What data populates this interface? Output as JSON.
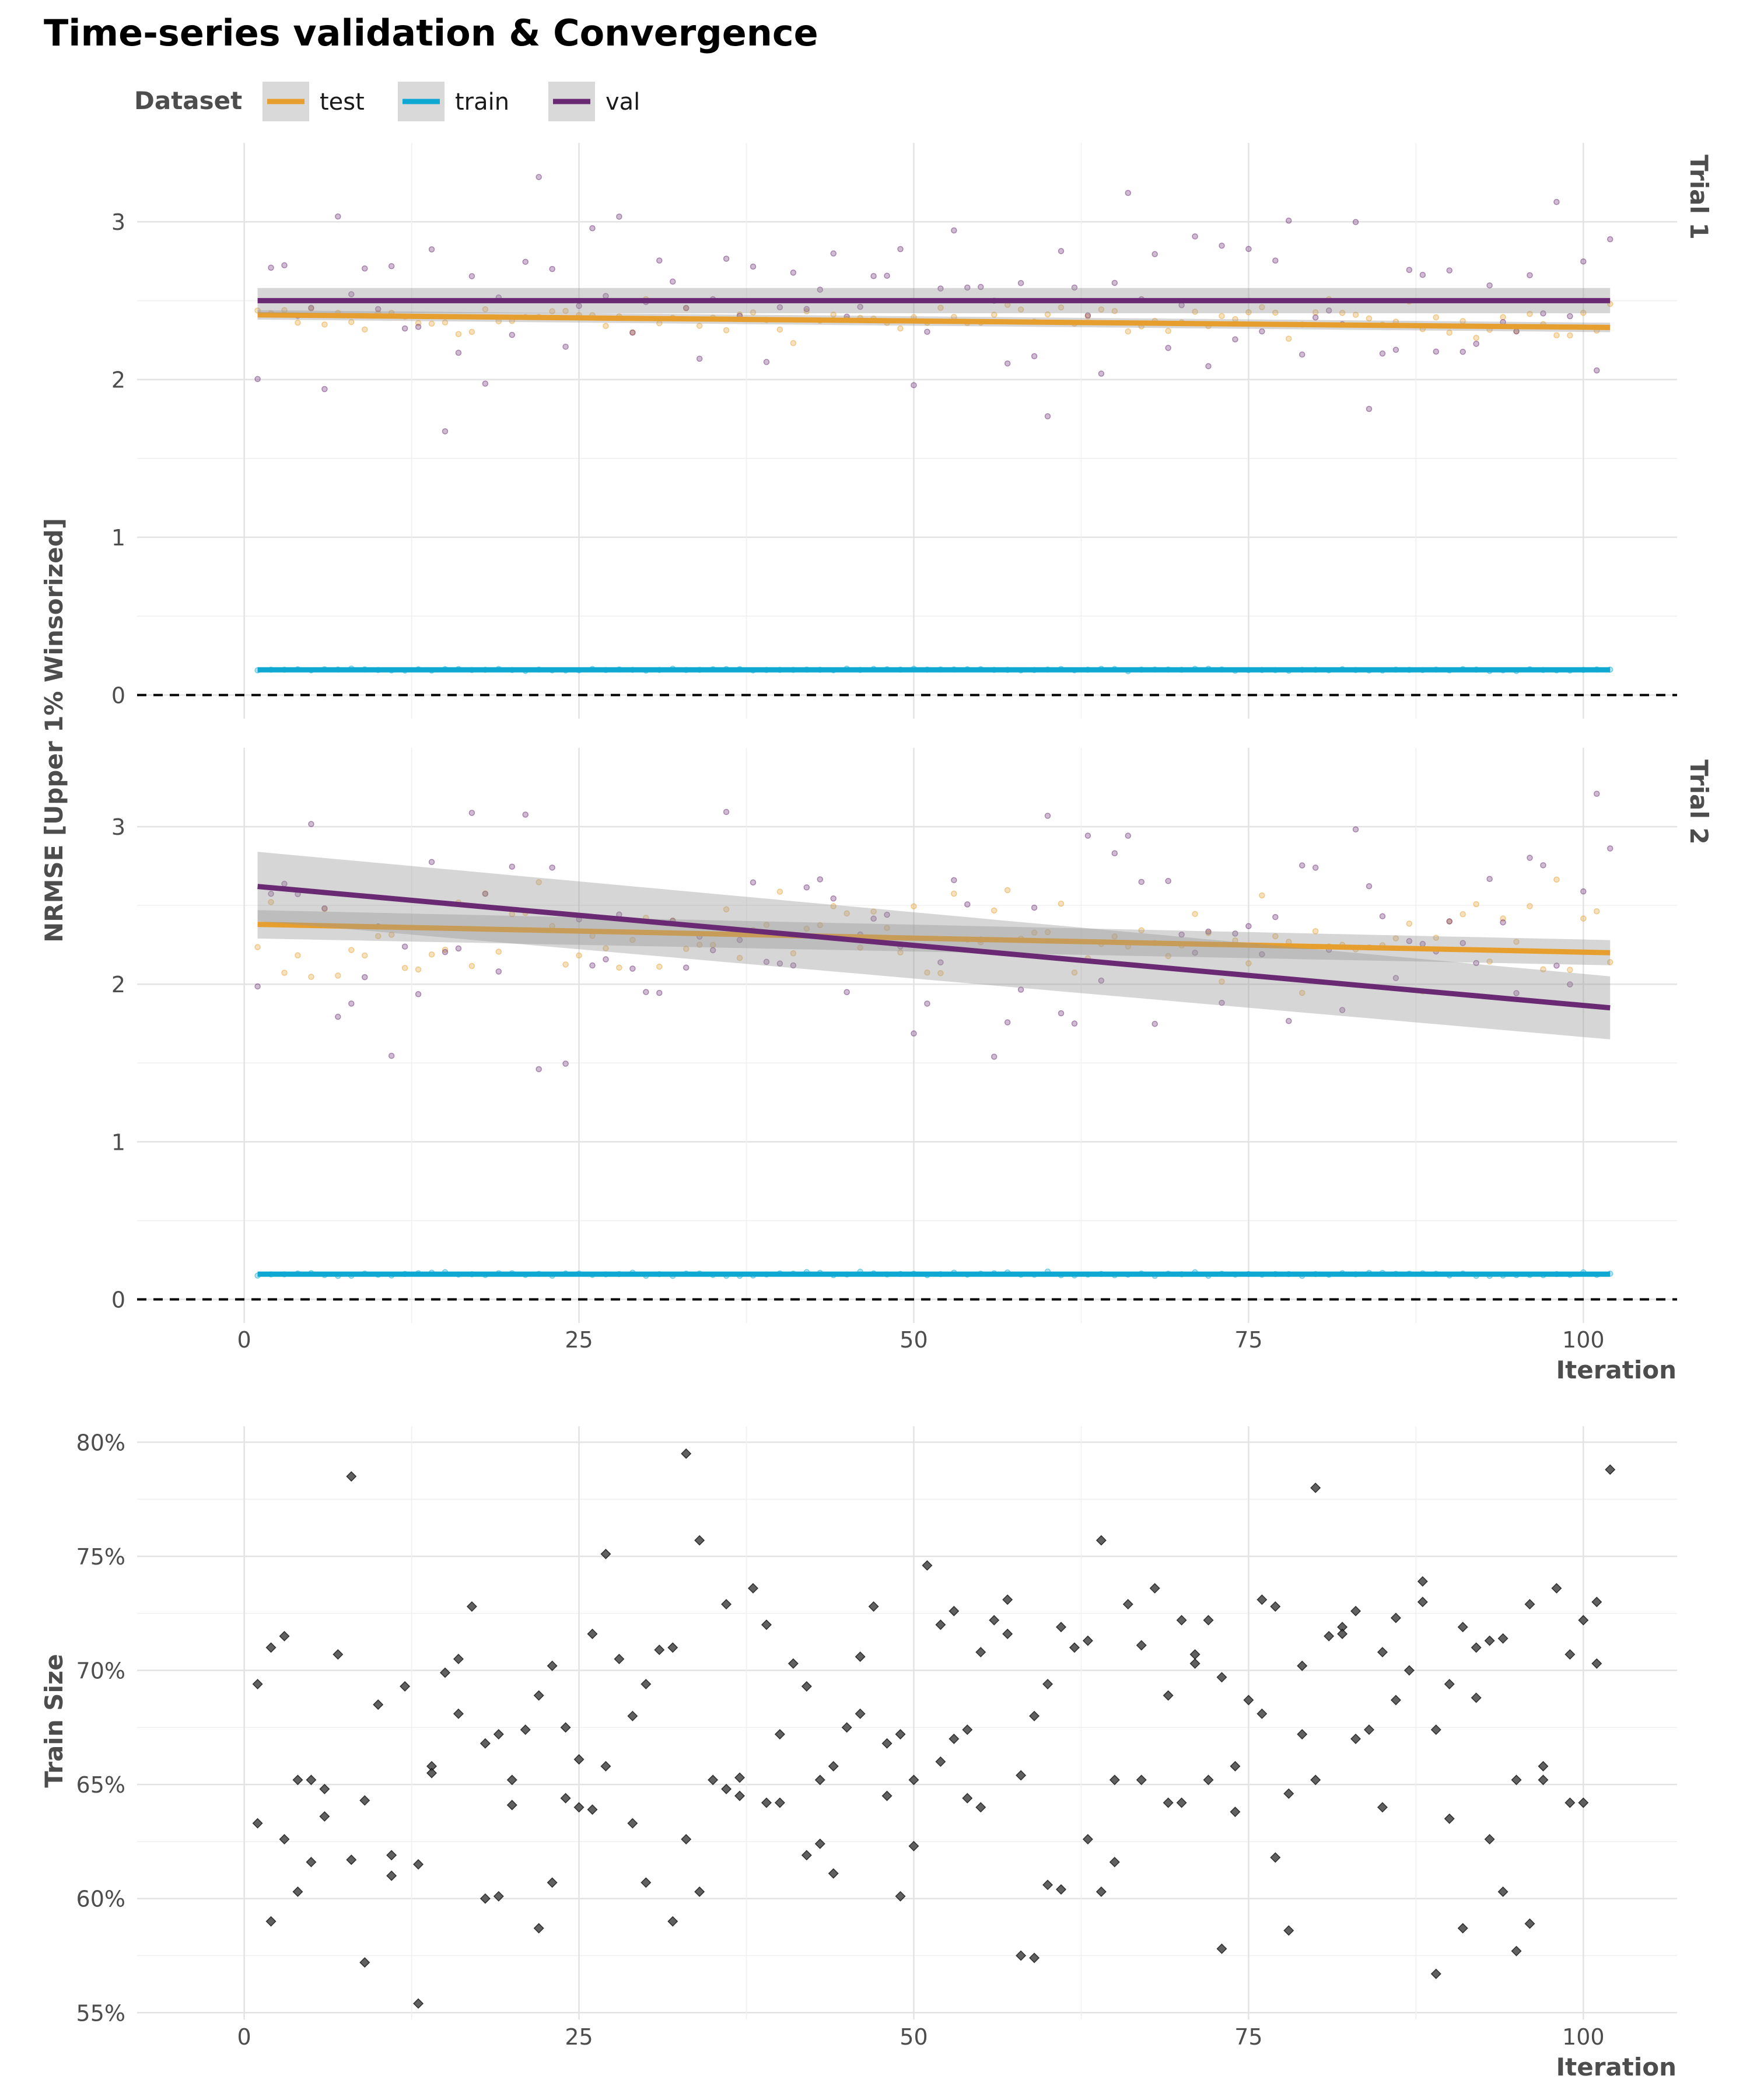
{
  "title": "Time-series validation & Convergence",
  "legend": {
    "title": "Dataset",
    "position": "top-left",
    "entries": [
      {
        "label": "test",
        "color": "#E69F2E"
      },
      {
        "label": "train",
        "color": "#0FA8D2"
      },
      {
        "label": "val",
        "color": "#6A2A73"
      }
    ]
  },
  "top_panel": {
    "ylabel": "NRMSE [Upper 1% Winsorized]",
    "xlabel": "Iteration",
    "xlim": [
      -8,
      107
    ],
    "ylim": [
      -0.15,
      3.5
    ],
    "x_ticks": [
      0,
      25,
      50,
      75,
      100
    ],
    "y_ticks": [
      0,
      1,
      2,
      3
    ],
    "reference_line": {
      "y": 0,
      "style": "dashed"
    },
    "grid": true
  },
  "bottom_panel": {
    "ylabel": "Train Size",
    "xlabel": "Iteration",
    "xlim": [
      -8,
      107
    ],
    "ylim": [
      0.547,
      0.807
    ],
    "x_ticks": [
      0,
      25,
      50,
      75,
      100
    ],
    "y_ticks": [
      "55%",
      "60%",
      "65%",
      "70%",
      "75%",
      "80%"
    ],
    "grid": true
  },
  "chart_data": [
    {
      "type": "scatter",
      "facet": "Trial 1",
      "xlabel": "Iteration",
      "ylabel": "NRMSE [Upper 1% Winsorized]",
      "series": [
        {
          "name": "test",
          "trend_start": 2.41,
          "trend_end": 2.33,
          "band_halfwidth": [
            0.03,
            0.03
          ],
          "point_mean": 2.38,
          "point_spread": 0.08
        },
        {
          "name": "train",
          "trend_start": 0.16,
          "trend_end": 0.16,
          "band_halfwidth": [
            0.01,
            0.01
          ],
          "point_mean": 0.16,
          "point_spread": 0.005
        },
        {
          "name": "val",
          "trend_start": 2.5,
          "trend_end": 2.5,
          "band_halfwidth": [
            0.08,
            0.08
          ],
          "point_mean": 2.5,
          "point_spread": 0.45
        }
      ]
    },
    {
      "type": "scatter",
      "facet": "Trial 2",
      "xlabel": "Iteration",
      "ylabel": "NRMSE [Upper 1% Winsorized]",
      "series": [
        {
          "name": "test",
          "trend_start": 2.38,
          "trend_end": 2.2,
          "band_halfwidth": [
            0.09,
            0.08
          ],
          "point_mean": 2.3,
          "point_spread": 0.2
        },
        {
          "name": "train",
          "trend_start": 0.16,
          "trend_end": 0.16,
          "band_halfwidth": [
            0.01,
            0.01
          ],
          "point_mean": 0.16,
          "point_spread": 0.01
        },
        {
          "name": "val",
          "trend_start": 2.62,
          "trend_end": 1.85,
          "band_halfwidth": [
            0.22,
            0.2
          ],
          "point_mean": 2.25,
          "point_spread": 0.55
        }
      ]
    },
    {
      "type": "scatter",
      "xlabel": "Iteration",
      "ylabel": "Train Size",
      "x": [
        1,
        2,
        3,
        4,
        5,
        6,
        7,
        8,
        9,
        10,
        11,
        12,
        13,
        14,
        15,
        16,
        17,
        18,
        19,
        20,
        21,
        22,
        23,
        24,
        25,
        26,
        27,
        28,
        29,
        30,
        31,
        32,
        33,
        34,
        35,
        36,
        37,
        38,
        39,
        40,
        41,
        42,
        43,
        44,
        45,
        46,
        47,
        48,
        49,
        50,
        51,
        52,
        53,
        54,
        55,
        56,
        57,
        58,
        59,
        60,
        61,
        62,
        63,
        64,
        65,
        66,
        67,
        68,
        69,
        70,
        71,
        72,
        73,
        74,
        75,
        76,
        77,
        78,
        79,
        80,
        81,
        82,
        83,
        84,
        85,
        86,
        87,
        88,
        89,
        90,
        91,
        92,
        93,
        94,
        95,
        96,
        97,
        98,
        99,
        100,
        101,
        102
      ],
      "y": [
        0.694,
        0.71,
        0.715,
        0.652,
        0.652,
        0.648,
        0.707,
        0.785,
        0.643,
        0.685,
        0.619,
        0.693,
        0.615,
        0.658,
        0.699,
        0.705,
        0.728,
        0.668,
        0.672,
        0.652,
        0.674,
        0.689,
        0.702,
        0.644,
        0.661,
        0.716,
        0.751,
        0.705,
        0.68,
        0.694,
        0.709,
        0.71,
        0.795,
        0.757,
        0.652,
        0.729,
        0.653,
        0.736,
        0.72,
        0.672,
        0.703,
        0.693,
        0.652,
        0.658,
        0.675,
        0.706,
        0.728,
        0.668,
        0.672,
        0.652,
        0.746,
        0.72,
        0.726,
        0.674,
        0.708,
        0.722,
        0.731,
        0.654,
        0.68,
        0.694,
        0.719,
        0.71,
        0.713,
        0.757,
        0.652,
        0.729,
        0.711,
        0.736,
        0.689,
        0.722,
        0.707,
        0.722,
        0.697,
        0.658,
        0.687,
        0.731,
        0.728,
        0.646,
        0.702,
        0.78,
        0.715,
        0.719,
        0.726,
        0.674,
        0.708,
        0.723,
        0.7,
        0.739,
        0.674,
        0.694,
        0.719,
        0.71,
        0.713,
        0.714,
        0.652,
        0.729,
        0.658,
        0.736,
        0.707,
        0.722,
        0.73,
        0.788
      ]
    },
    {
      "type": "scatter",
      "xlabel": "Iteration",
      "ylabel": "Train Size",
      "x": [
        1,
        2,
        3,
        4,
        5,
        6,
        8,
        9,
        11,
        13,
        14,
        16,
        18,
        19,
        20,
        22,
        23,
        24,
        25,
        26,
        27,
        29,
        30,
        32,
        33,
        34,
        36,
        37,
        39,
        40,
        42,
        43,
        44,
        46,
        48,
        49,
        50,
        52,
        53,
        54,
        55,
        57,
        58,
        59,
        60,
        61,
        63,
        64,
        65,
        67,
        69,
        70,
        71,
        72,
        73,
        74,
        76,
        77,
        78,
        79,
        80,
        82,
        83,
        85,
        86,
        88,
        89,
        90,
        91,
        92,
        93,
        94,
        95,
        96,
        97,
        99,
        100,
        101
      ],
      "y": [
        0.633,
        0.59,
        0.626,
        0.603,
        0.616,
        0.636,
        0.617,
        0.572,
        0.61,
        0.554,
        0.655,
        0.681,
        0.6,
        0.601,
        0.641,
        0.587,
        0.607,
        0.675,
        0.64,
        0.639,
        0.658,
        0.633,
        0.607,
        0.59,
        0.626,
        0.603,
        0.648,
        0.645,
        0.642,
        0.642,
        0.619,
        0.624,
        0.611,
        0.681,
        0.645,
        0.601,
        0.623,
        0.66,
        0.67,
        0.644,
        0.64,
        0.716,
        0.575,
        0.574,
        0.606,
        0.604,
        0.626,
        0.603,
        0.616,
        0.652,
        0.642,
        0.642,
        0.703,
        0.652,
        0.578,
        0.638,
        0.681,
        0.618,
        0.586,
        0.672,
        0.652,
        0.716,
        0.67,
        0.64,
        0.687,
        0.73,
        0.567,
        0.635,
        0.587,
        0.688,
        0.626,
        0.603,
        0.577,
        0.589,
        0.652,
        0.642,
        0.642,
        0.703
      ]
    }
  ]
}
